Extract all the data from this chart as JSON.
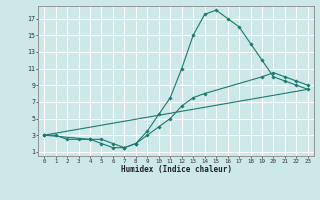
{
  "title": "",
  "xlabel": "Humidex (Indice chaleur)",
  "ylabel": "",
  "bg_color": "#cde8e8",
  "grid_color": "#ffffff",
  "line_color": "#1a7a6e",
  "xlim": [
    -0.5,
    23.5
  ],
  "ylim": [
    0.5,
    18.5
  ],
  "xticks": [
    0,
    1,
    2,
    3,
    4,
    5,
    6,
    7,
    8,
    9,
    10,
    11,
    12,
    13,
    14,
    15,
    16,
    17,
    18,
    19,
    20,
    21,
    22,
    23
  ],
  "yticks": [
    1,
    3,
    5,
    7,
    9,
    11,
    13,
    15,
    17
  ],
  "line1_x": [
    0,
    1,
    2,
    3,
    4,
    5,
    6,
    7,
    8,
    9,
    10,
    11,
    12,
    13,
    14,
    15,
    16,
    17,
    18,
    19,
    20,
    21,
    22,
    23
  ],
  "line1_y": [
    3,
    3,
    2.5,
    2.5,
    2.5,
    2,
    1.5,
    1.5,
    2,
    3.5,
    5.5,
    7.5,
    11,
    15,
    17.5,
    18,
    17,
    16,
    14,
    12,
    10,
    9.5,
    9,
    8.5
  ],
  "line2_x": [
    0,
    4,
    5,
    6,
    7,
    8,
    9,
    10,
    11,
    12,
    13,
    14,
    19,
    20,
    21,
    22,
    23
  ],
  "line2_y": [
    3,
    2.5,
    2.5,
    2,
    1.5,
    2,
    3,
    4,
    5,
    6.5,
    7.5,
    8,
    10,
    10.5,
    10,
    9.5,
    9
  ],
  "line3_x": [
    0,
    23
  ],
  "line3_y": [
    3,
    8.5
  ]
}
